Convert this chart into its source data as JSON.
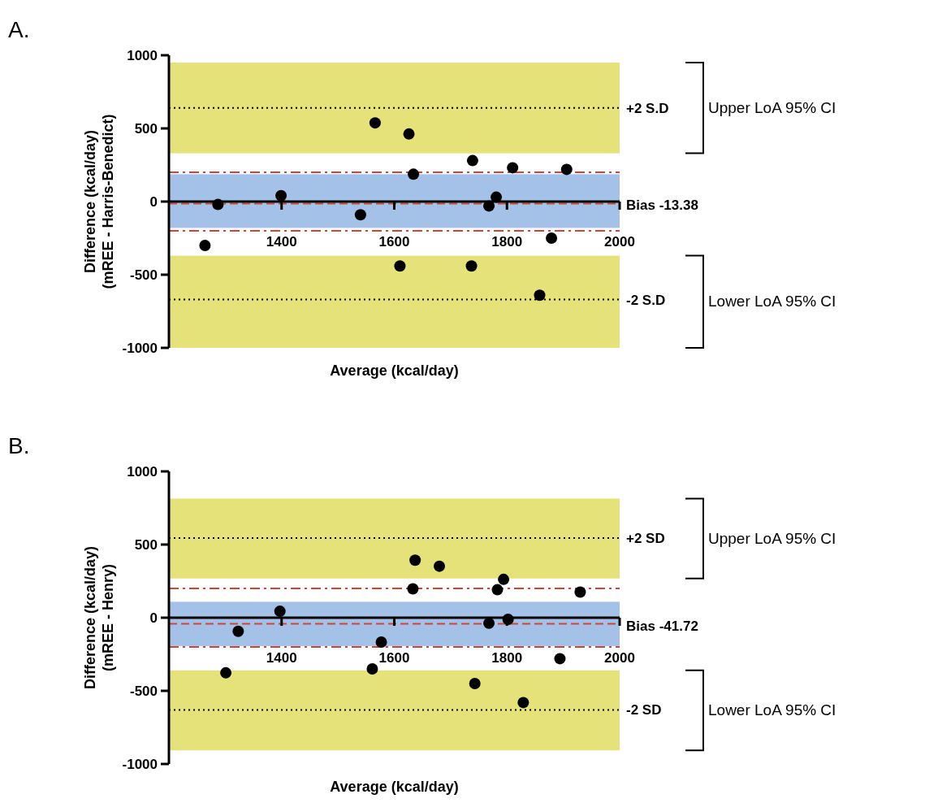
{
  "chart_data": [
    {
      "type": "scatter",
      "title": "A.",
      "xlabel": "Average (kcal/day)",
      "ylabel": "Difference (kcal/day)\n(mREE - Harris-Benedict)",
      "xlim": [
        1200,
        2000
      ],
      "ylim": [
        -1000,
        1000
      ],
      "xticks": [
        1400,
        1600,
        1800,
        2000
      ],
      "yticks": [
        -1000,
        -500,
        0,
        500,
        1000
      ],
      "marker": "circle",
      "grid": false,
      "series": [
        {
          "color": "#000000",
          "x": [
            1264,
            1287,
            1399,
            1540,
            1566,
            1610,
            1626,
            1634,
            1739,
            1737,
            1768,
            1781,
            1810,
            1858,
            1879,
            1906
          ],
          "values": [
            -300,
            -20,
            40,
            -90,
            538,
            -440,
            462,
            187,
            280,
            -440,
            -30,
            30,
            231,
            -640,
            -250,
            220
          ]
        }
      ],
      "annotations": [
        "Upper LoA 95% CI",
        "Lower LoA 95% CI"
      ],
      "bands": [
        {
          "axis": "y",
          "from": 330,
          "to": 950,
          "color": "#e6e27a"
        },
        {
          "axis": "y",
          "from": -1000,
          "to": -370,
          "color": "#e6e27a"
        },
        {
          "axis": "y",
          "from": -180,
          "to": 187,
          "color": "#a4c2e8"
        }
      ],
      "ref_lines": [
        {
          "axis": "y",
          "value": 640,
          "label": "+2 S.D",
          "color": "#000000",
          "line_style": "dotted"
        },
        {
          "axis": "y",
          "value": -670,
          "label": "-2 S.D",
          "color": "#000000",
          "line_style": "dotted"
        },
        {
          "axis": "y",
          "value": 200,
          "color": "#d0453a",
          "line_style": "dashdot"
        },
        {
          "axis": "y",
          "value": -200,
          "color": "#d0453a",
          "line_style": "dashdot"
        },
        {
          "axis": "y",
          "value": -13.38,
          "label": "Bias -13.38",
          "color": "#d0453a",
          "line_style": "dashed"
        }
      ]
    },
    {
      "type": "scatter",
      "title": "B.",
      "xlabel": "Average (kcal/day)",
      "ylabel": "Difference (kcal/day)\n(mREE - Henry)",
      "xlim": [
        1200,
        2000
      ],
      "ylim": [
        -1000,
        1000
      ],
      "xticks": [
        1400,
        1600,
        1800,
        2000
      ],
      "yticks": [
        -1000,
        -500,
        0,
        500,
        1000
      ],
      "marker": "circle",
      "grid": false,
      "series": [
        {
          "color": "#000000",
          "x": [
            1301,
            1323,
            1397,
            1561,
            1577,
            1633,
            1637,
            1680,
            1743,
            1768,
            1783,
            1794,
            1802,
            1829,
            1894,
            1930
          ],
          "values": [
            -377,
            -93,
            44,
            -350,
            -167,
            197,
            393,
            352,
            -450,
            -38,
            191,
            262,
            -11,
            -580,
            -280,
            175
          ]
        }
      ],
      "annotations": [
        "Upper LoA 95% CI",
        "Lower LoA 95% CI"
      ],
      "bands": [
        {
          "axis": "y",
          "from": 268,
          "to": 814,
          "color": "#e6e27a"
        },
        {
          "axis": "y",
          "from": -907,
          "to": -360,
          "color": "#e6e27a"
        },
        {
          "axis": "y",
          "from": -194,
          "to": 109,
          "color": "#a4c2e8"
        }
      ],
      "ref_lines": [
        {
          "axis": "y",
          "value": 545,
          "label": "+2 SD",
          "color": "#000000",
          "line_style": "dotted"
        },
        {
          "axis": "y",
          "value": -630,
          "label": "-2 SD",
          "color": "#000000",
          "line_style": "dotted"
        },
        {
          "axis": "y",
          "value": 200,
          "color": "#d0453a",
          "line_style": "dashdot"
        },
        {
          "axis": "y",
          "value": -200,
          "color": "#d0453a",
          "line_style": "dashdot"
        },
        {
          "axis": "y",
          "value": -41.72,
          "label": "Bias -41.72",
          "color": "#d0453a",
          "line_style": "dashed"
        }
      ]
    }
  ]
}
